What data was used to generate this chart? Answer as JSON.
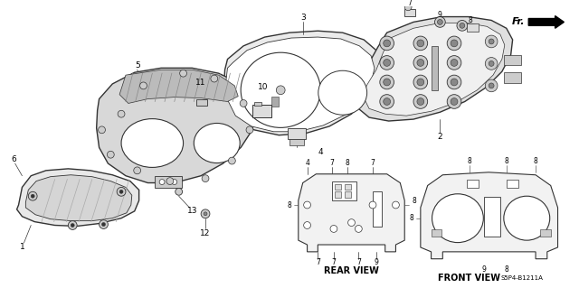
{
  "bg_color": "#ffffff",
  "line_color": "#333333",
  "text_color": "#000000",
  "rear_view_label": "REAR VIEW",
  "front_view_label": "FRONT VIEW",
  "front_view_code": "S5P4-B1211A",
  "fr_label": "Fr.",
  "figsize": [
    6.4,
    3.19
  ],
  "dpi": 100,
  "cover_color": "#e8e8e8",
  "bezel_color": "#d8d8d8",
  "gauge_color": "#ebebeb",
  "back_color": "#d5d5d5",
  "hatch_color": "#999999"
}
